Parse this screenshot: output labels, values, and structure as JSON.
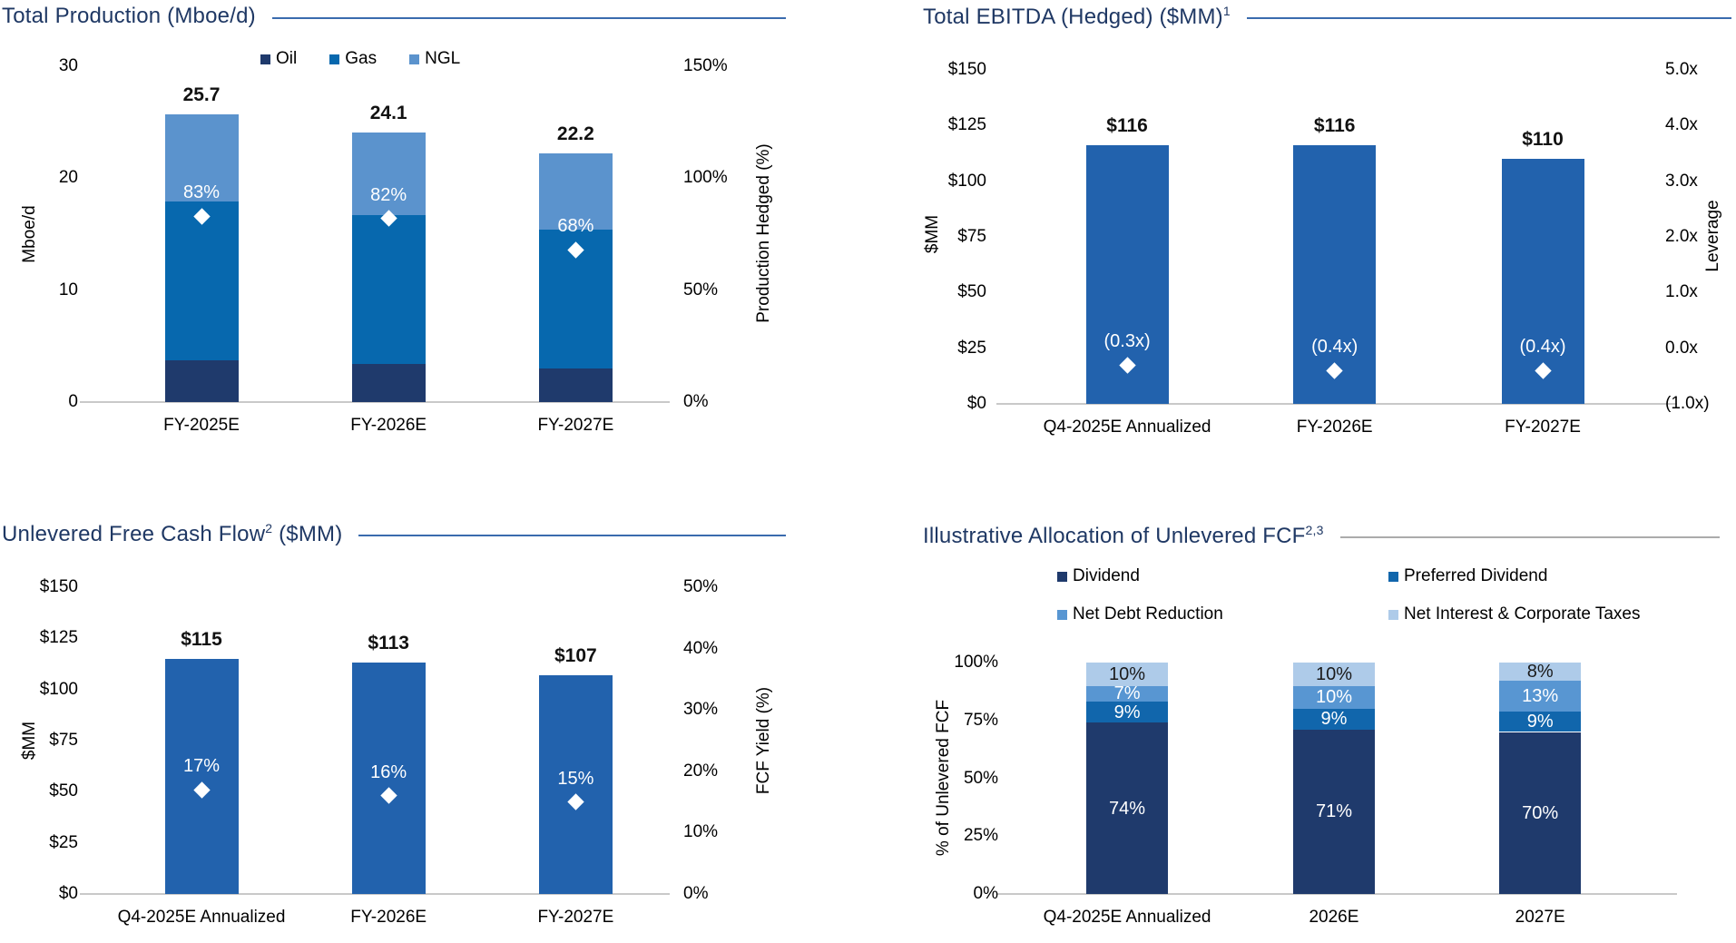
{
  "page": {
    "background": "#FFFFFF"
  },
  "colors": {
    "oil": "#1F3A6C",
    "gas": "#0768AE",
    "ngl": "#5B93CD",
    "bar_blue": "#2262AD",
    "dividend": "#1F3A6C",
    "preferred_dividend": "#1166AC",
    "net_debt_reduction": "#5896D2",
    "net_interest_taxes": "#AECBE9",
    "title_text": "#1F3864",
    "rule_blue": "#3A6BAE",
    "rule_gray": "#ABABAB",
    "baseline": "#C9C9C9",
    "axis_text": "#000000",
    "value_label": "#111111",
    "segment_label_light": "#FFFFFF",
    "segment_label_dark": "#1A1A1A"
  },
  "chart_data": [
    {
      "id": "total-production",
      "type": "bar",
      "stacked": true,
      "title": "Total Production (Mboe/d)",
      "title_parts": [
        {
          "t": "Total Production (Mboe/d)"
        }
      ],
      "rule_color": "blue",
      "left_axis": {
        "label": "Mboe/d",
        "min": 0,
        "max": 30,
        "ticks": [
          {
            "v": 30,
            "label": "30"
          },
          {
            "v": 20,
            "label": "20"
          },
          {
            "v": 10,
            "label": "10"
          },
          {
            "v": 0,
            "label": "0"
          }
        ]
      },
      "right_axis": {
        "label": "Production Hedged (%)",
        "min": 0,
        "max": 150,
        "ticks": [
          {
            "v": 150,
            "label": "150%"
          },
          {
            "v": 100,
            "label": "100%"
          },
          {
            "v": 50,
            "label": "50%"
          },
          {
            "v": 0,
            "label": "0%"
          }
        ]
      },
      "legend": [
        {
          "label": "Oil",
          "color_key": "oil"
        },
        {
          "label": "Gas",
          "color_key": "gas"
        },
        {
          "label": "NGL",
          "color_key": "ngl"
        }
      ],
      "categories": [
        "FY-2025E",
        "FY-2026E",
        "FY-2027E"
      ],
      "series": [
        {
          "name": "Oil",
          "color_key": "oil",
          "values": [
            3.7,
            3.4,
            3.0
          ]
        },
        {
          "name": "Gas",
          "color_key": "gas",
          "values": [
            14.2,
            13.3,
            12.4
          ]
        },
        {
          "name": "NGL",
          "color_key": "ngl",
          "values": [
            7.8,
            7.4,
            6.8
          ]
        }
      ],
      "totals": [
        "25.7",
        "24.1",
        "22.2"
      ],
      "markers": {
        "name": "Production Hedged (%)",
        "axis": "right",
        "values": [
          83,
          82,
          68
        ],
        "labels": [
          "83%",
          "82%",
          "68%"
        ]
      }
    },
    {
      "id": "total-ebitda",
      "type": "bar",
      "stacked": false,
      "title": "Total EBITDA (Hedged) ($MM)",
      "title_parts": [
        {
          "t": "Total EBITDA (Hedged) ($MM)"
        },
        {
          "sup": "1"
        }
      ],
      "rule_color": "blue",
      "left_axis": {
        "label": "$MM",
        "min": 0,
        "max": 150,
        "ticks": [
          {
            "v": 150,
            "label": "$150"
          },
          {
            "v": 125,
            "label": "$125"
          },
          {
            "v": 100,
            "label": "$100"
          },
          {
            "v": 75,
            "label": "$75"
          },
          {
            "v": 50,
            "label": "$50"
          },
          {
            "v": 25,
            "label": "$25"
          },
          {
            "v": 0,
            "label": "$0"
          }
        ]
      },
      "right_axis": {
        "label": "Leverage",
        "min": -1,
        "max": 5,
        "ticks": [
          {
            "v": 5,
            "label": "5.0x"
          },
          {
            "v": 4,
            "label": "4.0x"
          },
          {
            "v": 3,
            "label": "3.0x"
          },
          {
            "v": 2,
            "label": "2.0x"
          },
          {
            "v": 1,
            "label": "1.0x"
          },
          {
            "v": 0,
            "label": "0.0x"
          },
          {
            "v": -1,
            "label": "(1.0x)"
          }
        ]
      },
      "categories": [
        "Q4-2025E Annualized",
        "FY-2026E",
        "FY-2027E"
      ],
      "series": [
        {
          "name": "EBITDA",
          "color_key": "bar_blue",
          "values": [
            116,
            116,
            110
          ]
        }
      ],
      "totals": [
        "$116",
        "$116",
        "$110"
      ],
      "markers": {
        "name": "Leverage",
        "axis": "right",
        "values": [
          -0.3,
          -0.4,
          -0.4
        ],
        "labels": [
          "(0.3x)",
          "(0.4x)",
          "(0.4x)"
        ]
      }
    },
    {
      "id": "unlevered-fcf",
      "type": "bar",
      "stacked": false,
      "title": "Unlevered Free Cash Flow ($MM)",
      "title_parts": [
        {
          "t": "Unlevered Free Cash Flow"
        },
        {
          "sup": "2"
        },
        {
          "t": " ($MM)"
        }
      ],
      "rule_color": "blue",
      "left_axis": {
        "label": "$MM",
        "min": 0,
        "max": 150,
        "ticks": [
          {
            "v": 150,
            "label": "$150"
          },
          {
            "v": 125,
            "label": "$125"
          },
          {
            "v": 100,
            "label": "$100"
          },
          {
            "v": 75,
            "label": "$75"
          },
          {
            "v": 50,
            "label": "$50"
          },
          {
            "v": 25,
            "label": "$25"
          },
          {
            "v": 0,
            "label": "$0"
          }
        ]
      },
      "right_axis": {
        "label": "FCF Yield (%)",
        "min": 0,
        "max": 50,
        "ticks": [
          {
            "v": 50,
            "label": "50%"
          },
          {
            "v": 40,
            "label": "40%"
          },
          {
            "v": 30,
            "label": "30%"
          },
          {
            "v": 20,
            "label": "20%"
          },
          {
            "v": 10,
            "label": "10%"
          },
          {
            "v": 0,
            "label": "0%"
          }
        ]
      },
      "categories": [
        "Q4-2025E Annualized",
        "FY-2026E",
        "FY-2027E"
      ],
      "series": [
        {
          "name": "Unlevered FCF",
          "color_key": "bar_blue",
          "values": [
            115,
            113,
            107
          ]
        }
      ],
      "totals": [
        "$115",
        "$113",
        "$107"
      ],
      "markers": {
        "name": "FCF Yield",
        "axis": "right",
        "values": [
          17,
          16,
          15
        ],
        "labels": [
          "17%",
          "16%",
          "15%"
        ]
      }
    },
    {
      "id": "fcf-allocation",
      "type": "bar",
      "stacked": true,
      "percent": true,
      "title": "Illustrative Allocation of Unlevered FCF",
      "title_parts": [
        {
          "t": "Illustrative Allocation of Unlevered FCF"
        },
        {
          "sup": "2,3"
        }
      ],
      "rule_color": "gray",
      "left_axis": {
        "label": "% of Unlevered FCF",
        "min": 0,
        "max": 100,
        "ticks": [
          {
            "v": 100,
            "label": "100%"
          },
          {
            "v": 75,
            "label": "75%"
          },
          {
            "v": 50,
            "label": "50%"
          },
          {
            "v": 25,
            "label": "25%"
          },
          {
            "v": 0,
            "label": "0%"
          }
        ]
      },
      "legend": [
        {
          "label": "Dividend",
          "color_key": "dividend"
        },
        {
          "label": "Preferred Dividend",
          "color_key": "preferred_dividend"
        },
        {
          "label": "Net Debt Reduction",
          "color_key": "net_debt_reduction"
        },
        {
          "label": "Net Interest & Corporate Taxes",
          "color_key": "net_interest_taxes"
        }
      ],
      "categories": [
        "Q4-2025E Annualized",
        "2026E",
        "2027E"
      ],
      "series": [
        {
          "name": "Dividend",
          "color_key": "dividend",
          "values": [
            74,
            71,
            70
          ],
          "seg_labels": [
            "74%",
            "71%",
            "70%"
          ],
          "label_dark": false
        },
        {
          "name": "Preferred Dividend",
          "color_key": "preferred_dividend",
          "values": [
            9,
            9,
            9
          ],
          "seg_labels": [
            "9%",
            "9%",
            "9%"
          ],
          "label_dark": false
        },
        {
          "name": "Net Debt Reduction",
          "color_key": "net_debt_reduction",
          "values": [
            7,
            10,
            13
          ],
          "seg_labels": [
            "7%",
            "10%",
            "13%"
          ],
          "label_dark": false
        },
        {
          "name": "Net Interest & Corporate Taxes",
          "color_key": "net_interest_taxes",
          "values": [
            10,
            10,
            8
          ],
          "seg_labels": [
            "10%",
            "10%",
            "8%"
          ],
          "label_dark": true
        }
      ]
    }
  ]
}
